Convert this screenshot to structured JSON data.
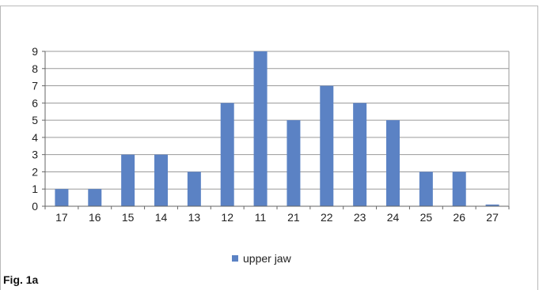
{
  "figure": {
    "caption": "Fig. 1a"
  },
  "colors": {
    "bar": "#5b82c4",
    "grid": "#9a9a9a",
    "axis": "#666666",
    "text": "#222222"
  },
  "chart_data": {
    "type": "bar",
    "categories": [
      "17",
      "16",
      "15",
      "14",
      "13",
      "12",
      "11",
      "21",
      "22",
      "23",
      "24",
      "25",
      "26",
      "27"
    ],
    "series": [
      {
        "name": "upper jaw",
        "values": [
          1,
          1,
          3,
          3,
          2,
          6,
          9,
          5,
          7,
          6,
          5,
          2,
          2,
          0.1
        ]
      }
    ],
    "title": "",
    "xlabel": "",
    "ylabel": "",
    "ylim": [
      0,
      9
    ],
    "yticks": [
      "0",
      "1",
      "2",
      "3",
      "4",
      "5",
      "6",
      "7",
      "8",
      "9"
    ],
    "grid": true,
    "legend_position": "bottom"
  }
}
